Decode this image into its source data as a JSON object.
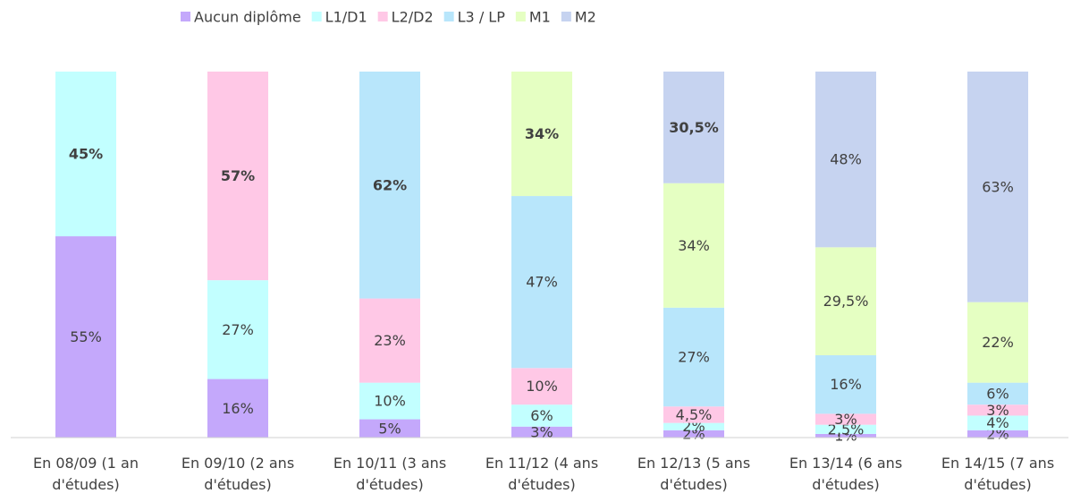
{
  "chart_data": {
    "type": "stacked_bar_100",
    "categories": [
      "En 08/09 (1 an d'études)",
      "En 09/10 (2 ans d'études)",
      "En 10/11 (3 ans d'études)",
      "En 11/12 (4 ans d'études)",
      "En 12/13 (5 ans d'études)",
      "En 13/14 (6 ans d'études)",
      "En 14/15 (7 ans d'études)"
    ],
    "ylim": [
      0,
      100
    ],
    "legend": "top",
    "series": [
      {
        "name": "Aucun diplôme",
        "color": "#c4a8fb",
        "values": [
          55,
          16,
          5,
          3,
          2,
          1,
          2
        ],
        "value_labels": [
          "55%",
          "16%",
          "5%",
          "3%",
          "2%",
          "1%",
          "2%"
        ],
        "bold": [
          false,
          false,
          false,
          false,
          false,
          false,
          false
        ]
      },
      {
        "name": "L1/D1",
        "color": "#c2ffff",
        "values": [
          45,
          27,
          10,
          6,
          2,
          2.5,
          4
        ],
        "value_labels": [
          "45%",
          "27%",
          "10%",
          "6%",
          "2%",
          "2,5%",
          "4%"
        ],
        "bold": [
          true,
          false,
          false,
          false,
          false,
          false,
          false
        ]
      },
      {
        "name": "L2/D2",
        "color": "#ffc8e6",
        "values": [
          null,
          57,
          23,
          10,
          4.5,
          3,
          3
        ],
        "value_labels": [
          null,
          "57%",
          "23%",
          "10%",
          "4,5%",
          "3%",
          "3%"
        ],
        "bold": [
          false,
          true,
          false,
          false,
          false,
          false,
          false
        ]
      },
      {
        "name": "L3 / LP",
        "color": "#b8e6fb",
        "values": [
          null,
          null,
          62,
          47,
          27,
          16,
          6
        ],
        "value_labels": [
          null,
          null,
          "62%",
          "47%",
          "27%",
          "16%",
          "6%"
        ],
        "bold": [
          false,
          false,
          true,
          false,
          false,
          false,
          false
        ]
      },
      {
        "name": "M1",
        "color": "#e5ffc2",
        "values": [
          null,
          null,
          null,
          34,
          34,
          29.5,
          22
        ],
        "value_labels": [
          null,
          null,
          null,
          "34%",
          "34%",
          "29,5%",
          "22%"
        ],
        "bold": [
          false,
          false,
          false,
          true,
          false,
          false,
          false
        ]
      },
      {
        "name": "M2",
        "color": "#c6d3f0",
        "values": [
          null,
          null,
          null,
          null,
          30.5,
          48,
          63
        ],
        "value_labels": [
          null,
          null,
          null,
          null,
          "30,5%",
          "48%",
          "63%"
        ],
        "bold": [
          false,
          false,
          false,
          false,
          true,
          false,
          false
        ]
      }
    ]
  }
}
